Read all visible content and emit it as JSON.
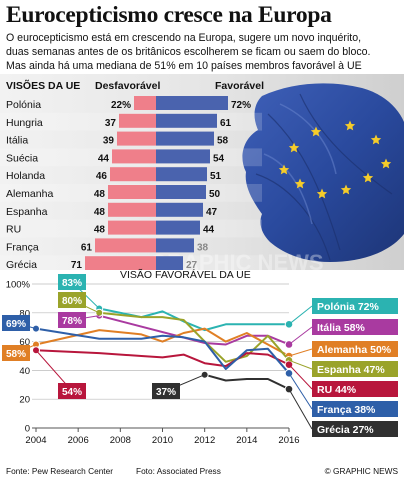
{
  "title": "Eurocepticismo cresce na Europa",
  "subtitle_lines": [
    "O eurocepticismo está em crescendo na Europa, sugere um novo inquérito,",
    "duas semanas antes de os britânicos escolherem se ficam ou saem do bloco.",
    "Mas ainda há uma mediana de 51% em 10 países membros favorável à UE"
  ],
  "colors": {
    "unfavorable": "#ef7f8a",
    "favorable": "#4a63ae",
    "eu_flag": "#2e4fa6",
    "star": "#f5cc2a"
  },
  "watermark": "GRAPHIC NEWS",
  "chart_data": [
    {
      "type": "bar",
      "title": "VISÕES DA UE",
      "series": [
        {
          "name": "Desfavorável",
          "values": [
            22,
            37,
            39,
            44,
            46,
            48,
            48,
            48,
            61,
            71
          ]
        },
        {
          "name": "Favorável",
          "values": [
            72,
            61,
            58,
            54,
            51,
            50,
            47,
            44,
            38,
            27
          ]
        }
      ],
      "categories": [
        "Polónia",
        "Hungria",
        "Itália",
        "Suécia",
        "Holanda",
        "Alemanha",
        "Espanha",
        "RU",
        "França",
        "Grécia"
      ],
      "value_labels_unfav": [
        "22%",
        "37",
        "39",
        "44",
        "46",
        "48",
        "48",
        "48",
        "61",
        "71"
      ],
      "value_labels_fav": [
        "72%",
        "61",
        "58",
        "54",
        "51",
        "50",
        "47",
        "44",
        "38",
        "27"
      ],
      "orientation": "horizontal diverging",
      "xlim": [
        0,
        100
      ]
    },
    {
      "type": "line",
      "title": "VISÃO FAVORÁVEL DA UE",
      "x": [
        2004,
        2007,
        2009,
        2010,
        2011,
        2012,
        2013,
        2014,
        2015,
        2016
      ],
      "ylim": [
        0,
        100
      ],
      "yticks": [
        "0",
        "20",
        "40",
        "60",
        "80",
        "100%"
      ],
      "xticks": [
        "2004",
        "2006",
        "2008",
        "2010",
        "2012",
        "2014",
        "2016"
      ],
      "series": [
        {
          "name": "Polónia",
          "color": "#2bb3b1",
          "start_label": "83%",
          "end_label": "Polónia 72%",
          "values": [
            null,
            83,
            77,
            81,
            74,
            68,
            72,
            72,
            72,
            72
          ]
        },
        {
          "name": "Itália",
          "color": "#a93aa0",
          "start_label": "78%",
          "end_label": "Itália 58%",
          "values": [
            null,
            78,
            null,
            null,
            null,
            59,
            58,
            64,
            64,
            58
          ]
        },
        {
          "name": "Alemanha",
          "color": "#e07f25",
          "start_label": "58%",
          "end_label": "Alemanha 50%",
          "values": [
            58,
            68,
            65,
            60,
            66,
            69,
            60,
            66,
            58,
            50
          ]
        },
        {
          "name": "Espanha",
          "color": "#9aa32a",
          "start_label": "80%",
          "end_label": "Espanha 47%",
          "values": [
            null,
            80,
            77,
            77,
            75,
            60,
            46,
            50,
            64,
            47
          ]
        },
        {
          "name": "RU",
          "color": "#b8163c",
          "start_label": "54%",
          "end_label": "RU 44%",
          "values": [
            54,
            52,
            50,
            49,
            51,
            45,
            43,
            52,
            51,
            44
          ]
        },
        {
          "name": "França",
          "color": "#2e5fa8",
          "start_label": "69%",
          "end_label": "França 38%",
          "values": [
            69,
            62,
            62,
            64,
            63,
            60,
            41,
            54,
            55,
            38
          ]
        },
        {
          "name": "Grécia",
          "color": "#303030",
          "start_label": "37%",
          "end_label": "Grécia 27%",
          "values": [
            null,
            null,
            null,
            null,
            null,
            37,
            33,
            34,
            34,
            27
          ]
        }
      ]
    }
  ],
  "footer": {
    "source": "Fonte: Pew Research Center",
    "photo": "Foto: Associated Press",
    "copyright": "© GRAPHIC NEWS"
  }
}
